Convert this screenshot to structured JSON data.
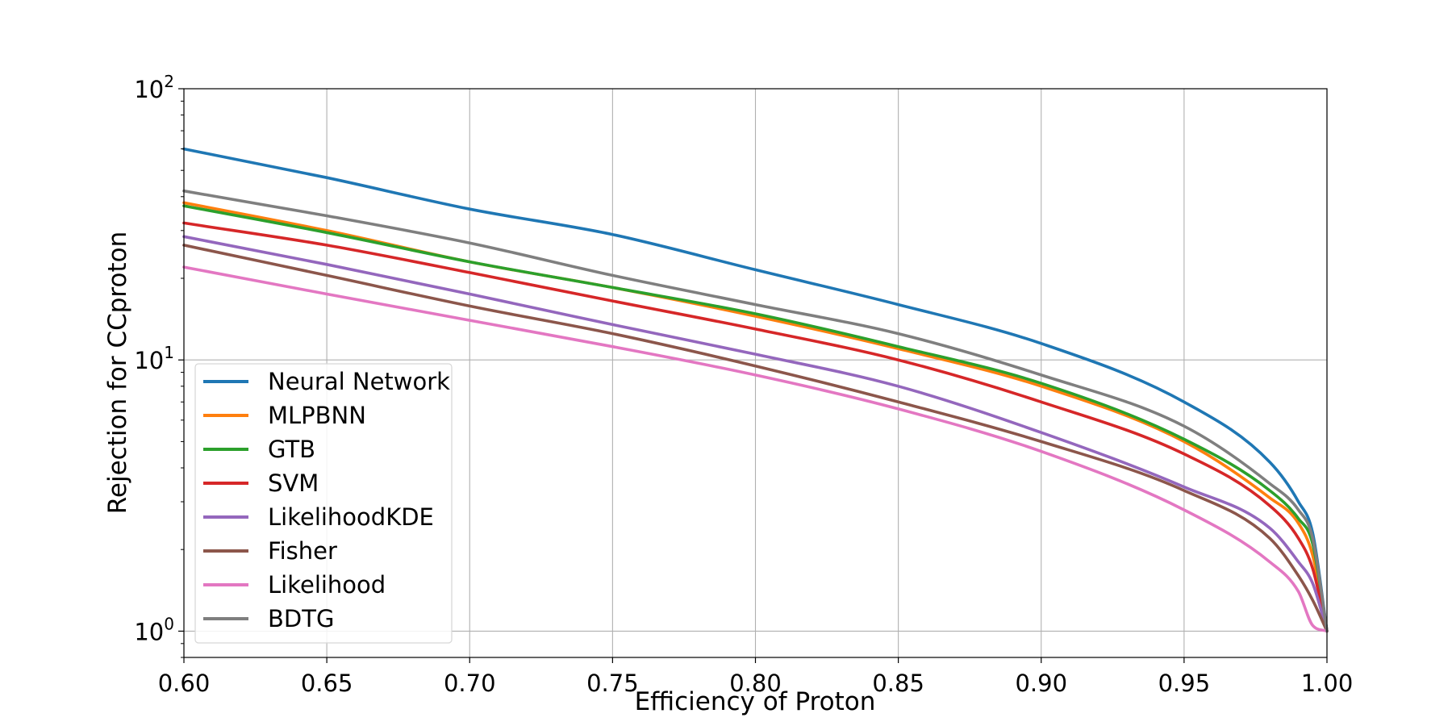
{
  "chart_data": {
    "type": "line",
    "title": "",
    "xlabel": "Efficiency of Proton",
    "ylabel": "Rejection for CCproton",
    "xlim": [
      0.6,
      1.0
    ],
    "ylim": [
      0.8,
      100
    ],
    "yscale": "log",
    "grid": true,
    "legend_position": "lower-left",
    "x_ticks": [
      0.6,
      0.65,
      0.7,
      0.75,
      0.8,
      0.85,
      0.9,
      0.95,
      1.0
    ],
    "x_tick_labels": [
      "0.60",
      "0.65",
      "0.70",
      "0.75",
      "0.80",
      "0.85",
      "0.90",
      "0.95",
      "1.00"
    ],
    "y_ticks": [
      {
        "value": 1,
        "base": "10",
        "exp": "0"
      },
      {
        "value": 10,
        "base": "10",
        "exp": "1"
      },
      {
        "value": 100,
        "base": "10",
        "exp": "2"
      }
    ],
    "x": [
      0.6,
      0.65,
      0.7,
      0.75,
      0.8,
      0.85,
      0.9,
      0.95,
      0.98,
      0.99,
      0.995,
      1.0
    ],
    "series": [
      {
        "name": "Neural Network",
        "color": "#1f77b4",
        "values": [
          60,
          47,
          36,
          29,
          21.5,
          16,
          11.5,
          7.0,
          4.2,
          3.0,
          2.3,
          1.0
        ]
      },
      {
        "name": "MLPBNN",
        "color": "#ff7f0e",
        "values": [
          38,
          30,
          23,
          18.5,
          14.5,
          11.0,
          8.0,
          5.0,
          3.1,
          2.5,
          1.9,
          1.0
        ]
      },
      {
        "name": "GTB",
        "color": "#2ca02c",
        "values": [
          37,
          29.5,
          23,
          18.5,
          14.8,
          11.2,
          8.2,
          5.1,
          3.3,
          2.6,
          2.1,
          1.0
        ]
      },
      {
        "name": "SVM",
        "color": "#d62728",
        "values": [
          32,
          26.5,
          21,
          16.5,
          13.0,
          10.0,
          7.0,
          4.5,
          2.9,
          2.2,
          1.7,
          1.0
        ]
      },
      {
        "name": "LikelihoodKDE",
        "color": "#9467bd",
        "values": [
          28.5,
          22.5,
          17.5,
          13.5,
          10.5,
          8.0,
          5.4,
          3.4,
          2.4,
          1.8,
          1.5,
          1.0
        ]
      },
      {
        "name": "Fisher",
        "color": "#8c564b",
        "values": [
          26.5,
          20.5,
          15.8,
          12.5,
          9.5,
          7.0,
          5.0,
          3.3,
          2.2,
          1.6,
          1.3,
          1.0
        ]
      },
      {
        "name": "Likelihood",
        "color": "#e377c2",
        "values": [
          22,
          17.5,
          14,
          11.2,
          8.8,
          6.6,
          4.6,
          2.8,
          1.8,
          1.4,
          1.05,
          1.0
        ]
      },
      {
        "name": "BDTG",
        "color": "#7f7f7f",
        "values": [
          42,
          34,
          27,
          20.5,
          16.0,
          12.5,
          8.8,
          5.7,
          3.5,
          2.8,
          2.2,
          1.0
        ]
      }
    ]
  }
}
